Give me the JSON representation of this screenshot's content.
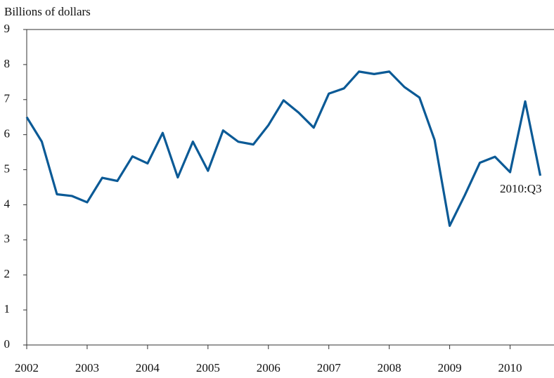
{
  "chart_data": {
    "type": "line",
    "y_axis_label": "Billions of dollars",
    "annotation": "2010:Q3",
    "x": [
      2002,
      2002.25,
      2002.5,
      2002.75,
      2003,
      2003.25,
      2003.5,
      2003.75,
      2004,
      2004.25,
      2004.5,
      2004.75,
      2005,
      2005.25,
      2005.5,
      2005.75,
      2006,
      2006.25,
      2006.5,
      2006.75,
      2007,
      2007.25,
      2007.5,
      2007.75,
      2008,
      2008.25,
      2008.5,
      2008.75,
      2009,
      2009.25,
      2009.5,
      2009.75,
      2010,
      2010.25,
      2010.5
    ],
    "series": [
      {
        "color": "#0b5a96",
        "values": [
          6.5,
          5.8,
          4.3,
          4.25,
          4.07,
          4.77,
          4.68,
          5.38,
          5.18,
          6.05,
          4.78,
          5.8,
          4.97,
          6.12,
          5.8,
          5.72,
          6.27,
          6.98,
          6.63,
          6.2,
          7.17,
          7.32,
          7.8,
          7.73,
          7.8,
          7.36,
          7.06,
          5.85,
          3.4,
          4.27,
          5.2,
          5.37,
          4.93,
          6.95,
          4.83
        ]
      }
    ],
    "xlim": [
      2002,
      2010.75
    ],
    "xticks": [
      2002,
      2003,
      2004,
      2005,
      2006,
      2007,
      2008,
      2009,
      2010
    ],
    "ylim": [
      0,
      9
    ],
    "yticks": [
      0,
      1,
      2,
      3,
      4,
      5,
      6,
      7,
      8,
      9
    ]
  }
}
